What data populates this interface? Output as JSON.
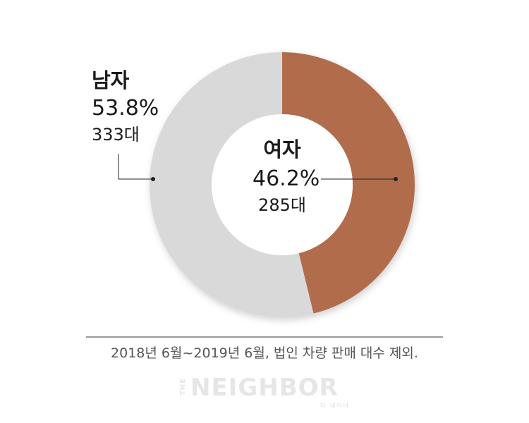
{
  "chart_data": {
    "type": "pie",
    "style": "donut",
    "slices": [
      {
        "label": "여자",
        "value": 46.2,
        "percent_label": "46.2%",
        "count_label": "285대",
        "color": "#b16d4c"
      },
      {
        "label": "남자",
        "value": 53.8,
        "percent_label": "53.8%",
        "count_label": "333대",
        "color": "#d9d9d9"
      }
    ],
    "start": "12 o'clock, clockwise"
  },
  "footnote": "2018년 6월~2019년 6월, 법인 차량 판매 대수 제외.",
  "logo": {
    "the": "THE",
    "word": "NEIGHBOR",
    "sub": "더 네이버"
  },
  "colors": {
    "female": "#b16d4c",
    "male": "#d9d9d9",
    "leader": "#222222"
  }
}
